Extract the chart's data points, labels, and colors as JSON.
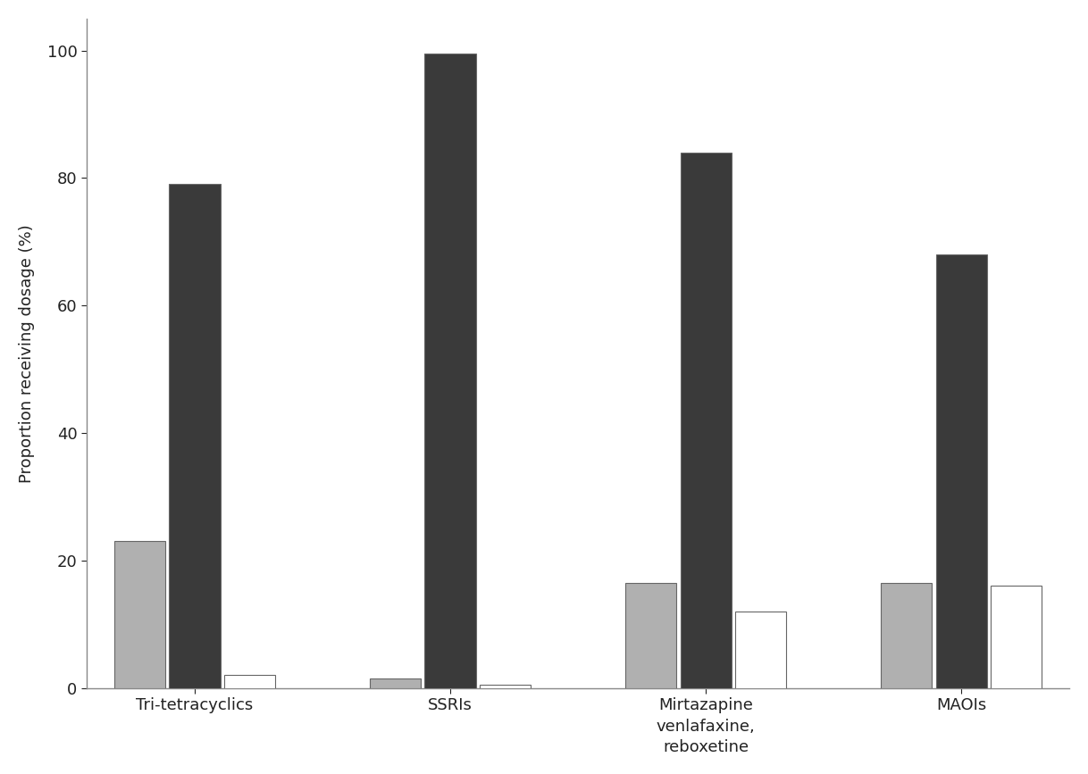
{
  "categories": [
    "Tri-tetracyclics",
    "SSRIs",
    "Mirtazapine\nvenlafaxine,\nreboxetine",
    "MAOIs"
  ],
  "series": {
    "gray": [
      23,
      1.5,
      16.5,
      16.5
    ],
    "dark": [
      79,
      99.5,
      84,
      68
    ],
    "white": [
      2,
      0.5,
      12,
      16
    ]
  },
  "colors": {
    "gray": "#b0b0b0",
    "dark": "#3a3a3a",
    "white": "#ffffff"
  },
  "ylabel": "Proportion receiving dosage (%)",
  "ylim": [
    0,
    105
  ],
  "yticks": [
    0,
    20,
    40,
    60,
    80,
    100
  ],
  "bar_width": 0.28,
  "background_color": "#ffffff",
  "tick_fontsize": 13,
  "label_fontsize": 13,
  "bar_edge_color": "#666666"
}
